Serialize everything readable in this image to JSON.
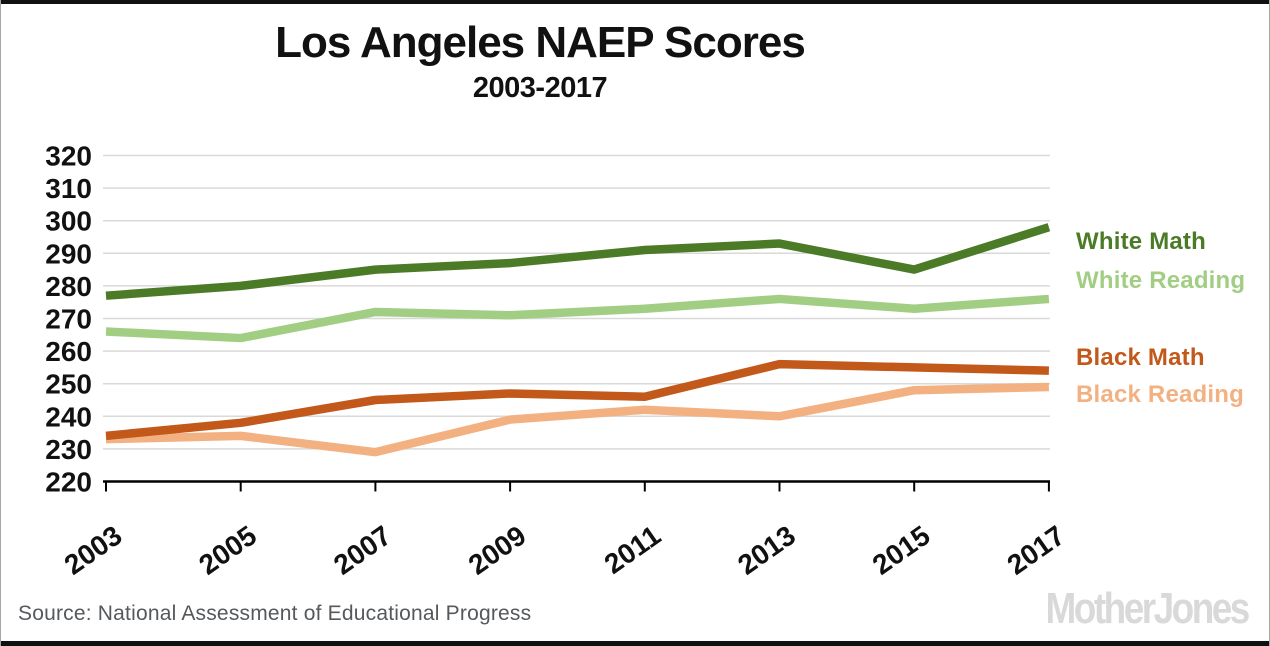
{
  "title": "Los Angeles NAEP Scores",
  "subtitle": "2003-2017",
  "source": "Source: National Assessment of Educational Progress",
  "brand": "MotherJones",
  "colors": {
    "white_math": "#4c7b28",
    "white_reading": "#a2ce84",
    "black_math": "#c2591b",
    "black_reading": "#f3b182",
    "grid": "#d9d9d9",
    "axis": "#000000",
    "brand_gray": "#d9d9d9"
  },
  "chart_data": {
    "type": "line",
    "title": "Los Angeles NAEP Scores",
    "subtitle": "2003-2017",
    "x": [
      2003,
      2005,
      2007,
      2009,
      2011,
      2013,
      2015,
      2017
    ],
    "series": [
      {
        "name": "White Math",
        "color": "#4c7b28",
        "values": [
          277,
          280,
          285,
          287,
          291,
          293,
          285,
          298
        ]
      },
      {
        "name": "White Reading",
        "color": "#a2ce84",
        "values": [
          266,
          264,
          272,
          271,
          273,
          276,
          273,
          276
        ]
      },
      {
        "name": "Black Math",
        "color": "#c2591b",
        "values": [
          234,
          238,
          245,
          247,
          246,
          256,
          255,
          254
        ]
      },
      {
        "name": "Black Reading",
        "color": "#f3b182",
        "values": [
          233,
          234,
          229,
          239,
          242,
          240,
          248,
          249
        ]
      }
    ],
    "xlabel": "",
    "ylabel": "",
    "ylim": [
      220,
      320
    ],
    "yticks": [
      220,
      230,
      240,
      250,
      260,
      270,
      280,
      290,
      300,
      310,
      320
    ],
    "grid": true,
    "legend_position": "right",
    "x_tick_rotation_deg": -35
  }
}
